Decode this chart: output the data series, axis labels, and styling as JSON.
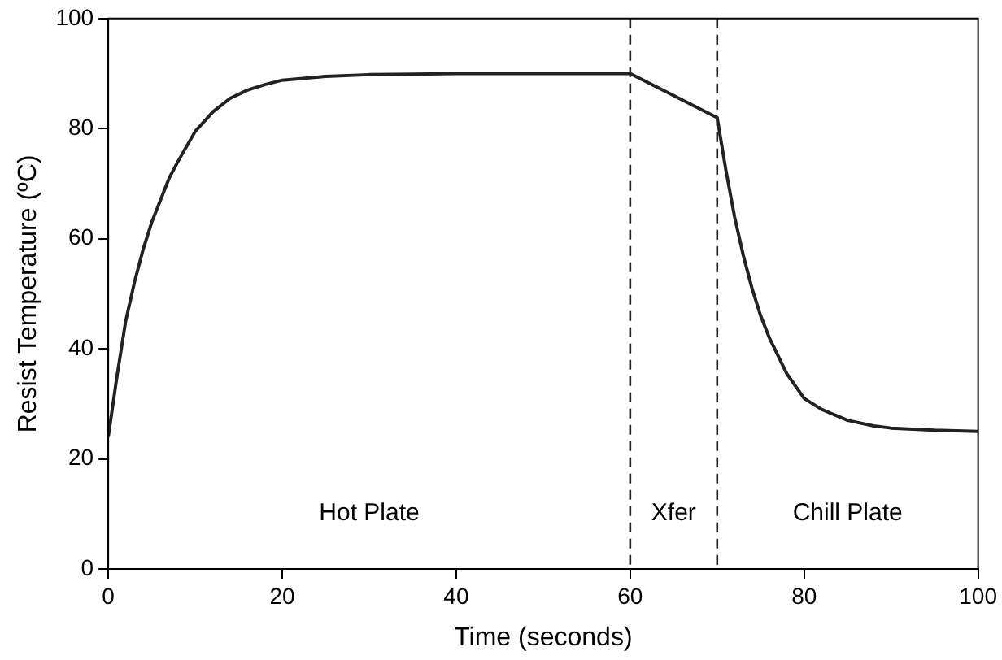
{
  "chart_data": {
    "type": "line",
    "xlabel": "Time (seconds)",
    "ylabel": "Resist Temperature (ºC)",
    "xlim": [
      0,
      100
    ],
    "xticks": [
      0,
      20,
      40,
      60,
      80,
      100
    ],
    "ylim": [
      0,
      100
    ],
    "yticks": [
      0,
      20,
      40,
      60,
      80,
      100
    ],
    "grid": false,
    "legend": false,
    "marker": "none",
    "line_style": "solid",
    "series": [
      {
        "color": "#222222",
        "x": [
          0,
          1,
          2,
          3,
          4,
          5,
          6,
          7,
          8,
          10,
          12,
          14,
          16,
          18,
          20,
          25,
          30,
          40,
          50,
          60,
          70,
          71,
          72,
          73,
          74,
          75,
          76,
          78,
          80,
          82,
          85,
          88,
          90,
          95,
          100
        ],
        "values": [
          24,
          35,
          45,
          52,
          58,
          63,
          67,
          71,
          74,
          79.5,
          83,
          85.5,
          87,
          88,
          88.8,
          89.5,
          89.8,
          90,
          90,
          90,
          82,
          72.5,
          64,
          57,
          51,
          46,
          42,
          35.5,
          31,
          29,
          27,
          26,
          25.6,
          25.2,
          25
        ]
      }
    ],
    "ref_lines": [
      {
        "axis": "x",
        "value": 60,
        "line_style": "dashed",
        "color": "#222222"
      },
      {
        "axis": "x",
        "value": 70,
        "line_style": "dashed",
        "color": "#222222"
      }
    ],
    "annotations": [
      "Hot Plate",
      "Xfer",
      "Chill Plate"
    ]
  }
}
